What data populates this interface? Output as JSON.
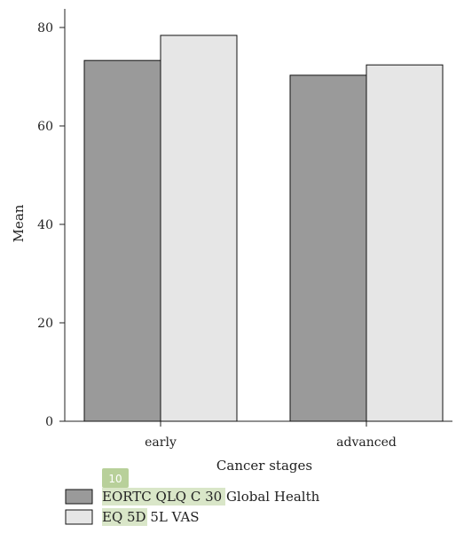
{
  "chart_data": {
    "type": "bar",
    "categories": [
      "early",
      "advanced"
    ],
    "series": [
      {
        "name": "EORTC QLQ C 30 Global Health",
        "values": [
          73.3,
          70.3
        ],
        "color": "#9a9a9a"
      },
      {
        "name": "EQ 5D 5L VAS",
        "values": [
          78.4,
          72.4
        ],
        "color": "#e6e6e6"
      }
    ],
    "xlabel": "Cancer stages",
    "ylabel": "Mean",
    "ylim": [
      0,
      80
    ],
    "yticks": [
      0,
      20,
      40,
      60,
      80
    ],
    "grid": false,
    "legend_position": "bottom-left"
  },
  "annotations": {
    "badge_label": "10",
    "highlight_color": "#d9e6c8",
    "badge_color": "#b8d09a"
  }
}
